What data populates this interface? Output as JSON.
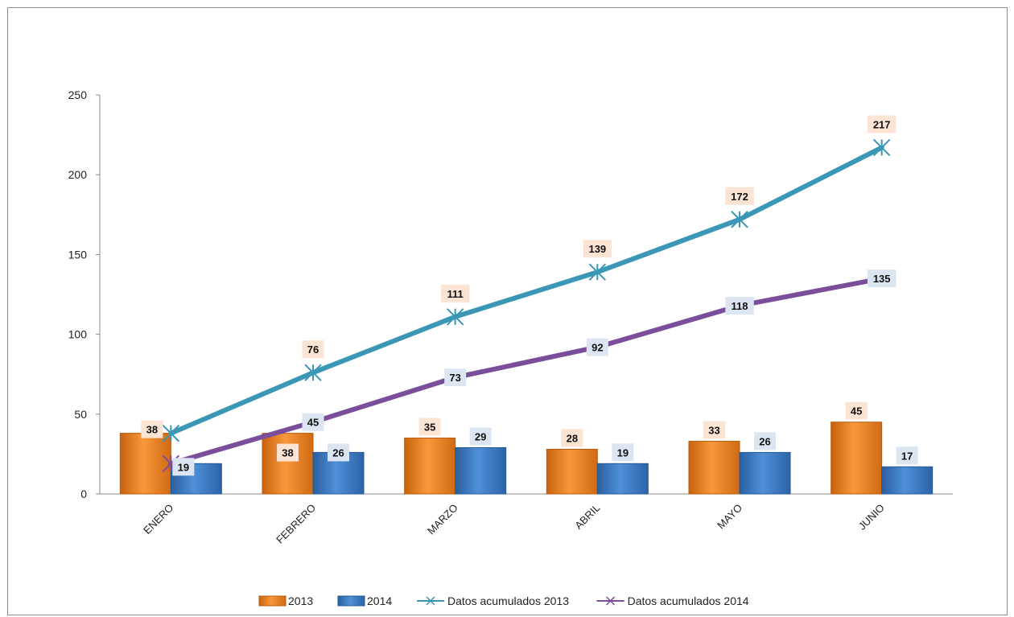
{
  "chart_data": {
    "type": "bar",
    "categories": [
      "ENERO",
      "FEBRERO",
      "MARZO",
      "ABRIL",
      "MAYO",
      "JUNIO"
    ],
    "series": [
      {
        "name": "2013",
        "kind": "bar",
        "color": "#ED7D1F",
        "values": [
          38,
          38,
          35,
          28,
          33,
          45
        ]
      },
      {
        "name": "2014",
        "kind": "bar",
        "color": "#3A79C4",
        "values": [
          19,
          26,
          29,
          19,
          26,
          17
        ]
      },
      {
        "name": "Datos acumulados 2013",
        "kind": "line",
        "color": "#3B97B5",
        "values": [
          38,
          76,
          111,
          139,
          172,
          217
        ]
      },
      {
        "name": "Datos acumulados 2014",
        "kind": "line",
        "color": "#7A4E9A",
        "values": [
          19,
          45,
          73,
          92,
          118,
          135
        ]
      }
    ],
    "yticks": [
      0,
      50,
      100,
      150,
      200,
      250
    ],
    "ylim": [
      0,
      250
    ],
    "grid": false,
    "legend_position": "bottom",
    "title": "",
    "xlabel": "",
    "ylabel": ""
  }
}
